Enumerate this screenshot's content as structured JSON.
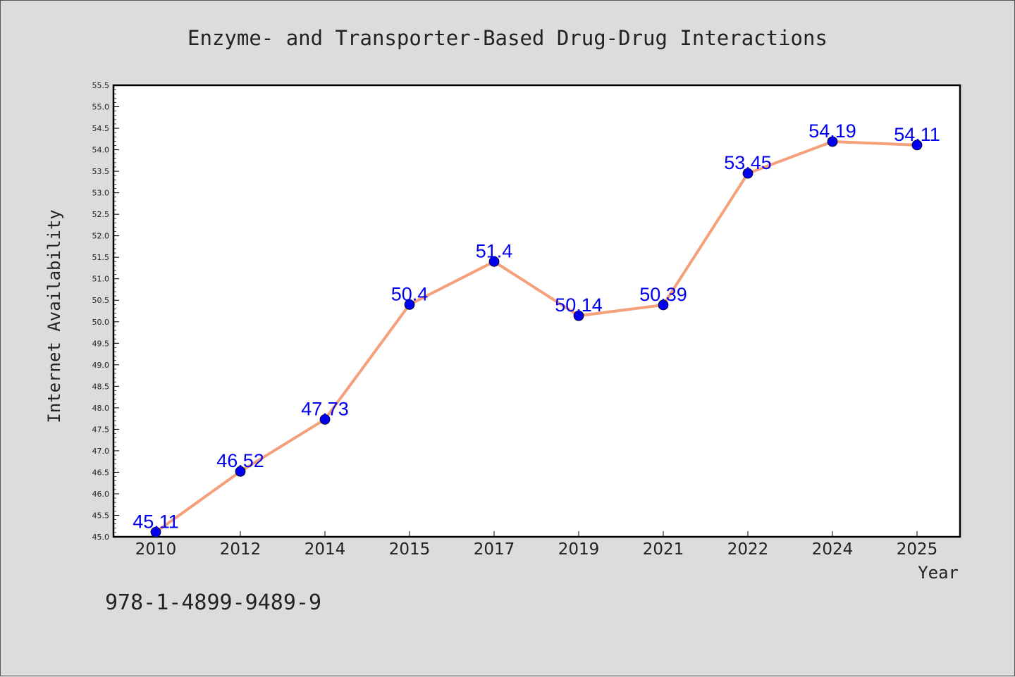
{
  "chart_data": {
    "type": "line",
    "title": "Enzyme- and Transporter-Based Drug-Drug Interactions",
    "xlabel": "Year",
    "ylabel": "Internet Availability",
    "categories": [
      "2010",
      "2012",
      "2014",
      "2015",
      "2017",
      "2019",
      "2021",
      "2022",
      "2024",
      "2025"
    ],
    "series": [
      {
        "values": [
          45.11,
          46.52,
          47.73,
          50.4,
          51.4,
          50.14,
          50.39,
          53.45,
          54.19,
          54.11
        ],
        "data_labels": [
          "45.11",
          "46.52",
          "47.73",
          "50.4",
          "51.4",
          "50.14",
          "50.39",
          "53.45",
          "54.19",
          "54.11"
        ],
        "line_color": "#f5a07a",
        "marker_color": "#0000ee"
      }
    ],
    "ylim": [
      45.0,
      55.5
    ],
    "yticks": [
      "45.0",
      "45.5",
      "46.0",
      "46.5",
      "47.0",
      "47.5",
      "48.0",
      "48.5",
      "49.0",
      "49.5",
      "50.0",
      "50.5",
      "51.0",
      "51.5",
      "52.0",
      "52.5",
      "53.0",
      "53.5",
      "54.0",
      "54.5",
      "55.0",
      "55.5"
    ],
    "grid": false,
    "legend": "none"
  },
  "footnote": "978-1-4899-9489-9",
  "colors": {
    "background": "#dcdcdc",
    "plot_area": "#ffffff",
    "text": "#222222"
  }
}
